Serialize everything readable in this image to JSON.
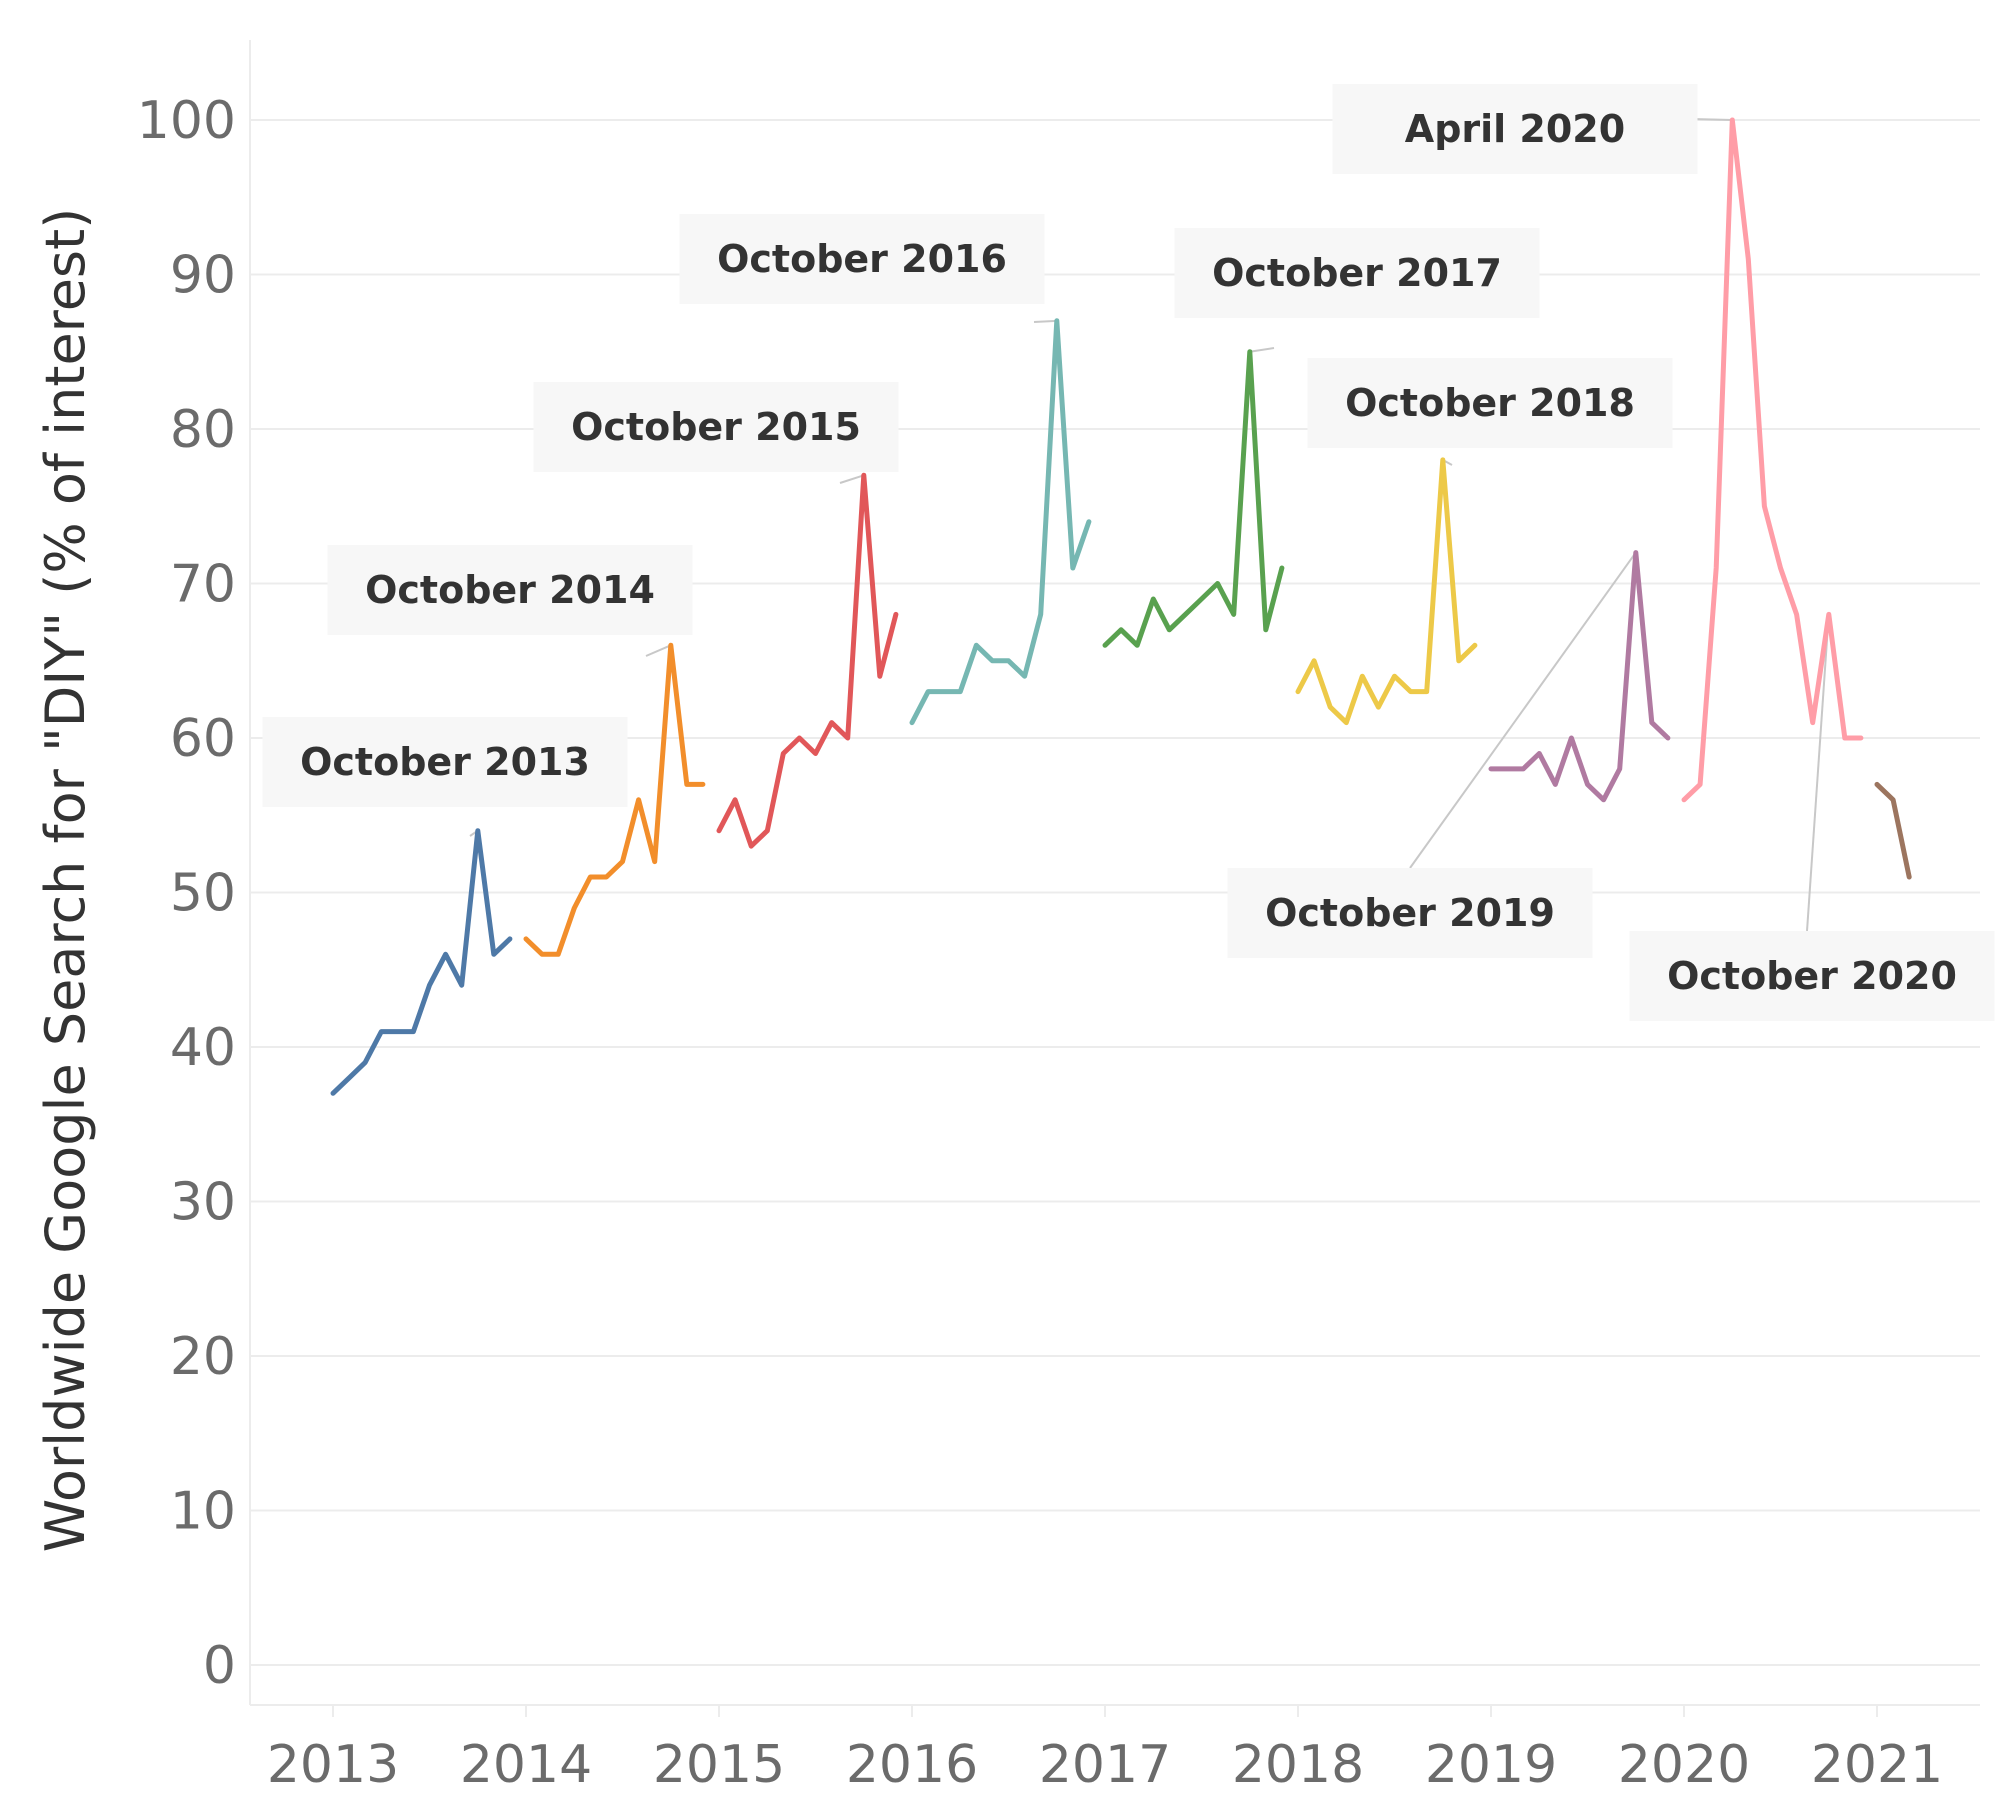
{
  "chart_data": {
    "type": "line",
    "title": "",
    "xlabel": "",
    "ylabel": "Worldwide Google Search for \"DIY\" (% of interest)",
    "ylim": [
      0,
      100
    ],
    "yticks": [
      0,
      10,
      20,
      30,
      40,
      50,
      60,
      70,
      80,
      90,
      100
    ],
    "xticks": [
      "2013",
      "2014",
      "2015",
      "2016",
      "2017",
      "2018",
      "2019",
      "2020",
      "2021"
    ],
    "grid": true,
    "series": [
      {
        "year": 2013,
        "color": "#4e79a7",
        "values": [
          37,
          38,
          39,
          41,
          41,
          41,
          44,
          46,
          44,
          54,
          46,
          47
        ]
      },
      {
        "year": 2014,
        "color": "#f28e2b",
        "values": [
          47,
          46,
          46,
          49,
          51,
          51,
          52,
          56,
          52,
          66,
          57,
          57
        ]
      },
      {
        "year": 2015,
        "color": "#e15759",
        "values": [
          54,
          56,
          53,
          54,
          59,
          60,
          59,
          61,
          60,
          77,
          64,
          68
        ]
      },
      {
        "year": 2016,
        "color": "#76b7b2",
        "values": [
          61,
          63,
          63,
          63,
          66,
          65,
          65,
          64,
          68,
          87,
          71,
          74
        ]
      },
      {
        "year": 2017,
        "color": "#59a14f",
        "values": [
          66,
          67,
          66,
          69,
          67,
          68,
          69,
          70,
          68,
          85,
          67,
          71
        ]
      },
      {
        "year": 2018,
        "color": "#edc948",
        "values": [
          63,
          65,
          62,
          61,
          64,
          62,
          64,
          63,
          63,
          78,
          65,
          66
        ]
      },
      {
        "year": 2019,
        "color": "#b07aa1",
        "values": [
          58,
          58,
          58,
          59,
          57,
          60,
          57,
          56,
          58,
          72,
          61,
          60
        ]
      },
      {
        "year": 2020,
        "color": "#ff9da7",
        "values": [
          56,
          57,
          71,
          100,
          91,
          75,
          71,
          68,
          61,
          68,
          60,
          60
        ]
      },
      {
        "year": 2021,
        "color": "#9c755f",
        "values": [
          57,
          56,
          51
        ]
      }
    ],
    "annotations": [
      {
        "label": "October 2013",
        "x": 2013.75,
        "y": 54
      },
      {
        "label": "October 2014",
        "x": 2014.75,
        "y": 66
      },
      {
        "label": "October 2015",
        "x": 2015.75,
        "y": 77
      },
      {
        "label": "October 2016",
        "x": 2016.75,
        "y": 87
      },
      {
        "label": "October 2017",
        "x": 2017.75,
        "y": 85
      },
      {
        "label": "October 2018",
        "x": 2018.75,
        "y": 78
      },
      {
        "label": "October 2019",
        "x": 2019.75,
        "y": 72
      },
      {
        "label": "April 2020",
        "x": 2020.25,
        "y": 100
      },
      {
        "label": "October 2020",
        "x": 2020.75,
        "y": 68
      }
    ]
  }
}
